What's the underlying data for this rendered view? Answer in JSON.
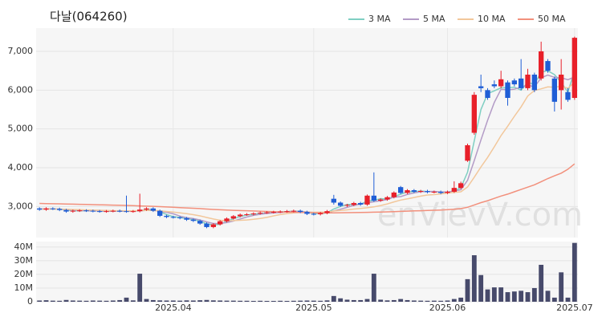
{
  "chart_data": {
    "type": "candlestick",
    "title": "다날(064260)",
    "watermark": "enVievV.com",
    "legend": "top-right",
    "grid": true,
    "up_color": "#e8202a",
    "down_color": "#1f5ed6",
    "categories": [
      null,
      null,
      null,
      null,
      null,
      null,
      null,
      null,
      null,
      null,
      null,
      null,
      null,
      null,
      null,
      null,
      null,
      null,
      null,
      null,
      "2025.04",
      null,
      null,
      null,
      null,
      null,
      null,
      null,
      null,
      null,
      null,
      null,
      null,
      null,
      null,
      null,
      null,
      null,
      null,
      null,
      null,
      "2025.05",
      null,
      null,
      null,
      null,
      null,
      null,
      null,
      null,
      null,
      null,
      null,
      null,
      null,
      null,
      null,
      null,
      null,
      null,
      null,
      "2025.06",
      null,
      null,
      null,
      null,
      null,
      null,
      null,
      null,
      null,
      null,
      null,
      null,
      null,
      null,
      null,
      null,
      null,
      null,
      "2025.07"
    ],
    "open": [
      2950,
      2920,
      2950,
      2940,
      2910,
      2870,
      2890,
      2900,
      2890,
      2880,
      2870,
      2880,
      2890,
      2880,
      2870,
      2880,
      2920,
      2950,
      2890,
      2760,
      2730,
      2720,
      2700,
      2660,
      2630,
      2560,
      2470,
      2540,
      2620,
      2690,
      2750,
      2790,
      2800,
      2820,
      2840,
      2850,
      2860,
      2870,
      2880,
      2890,
      2860,
      2810,
      2800,
      2830,
      3200,
      3100,
      3020,
      3040,
      3090,
      3050,
      3280,
      3150,
      3180,
      3240,
      3500,
      3350,
      3420,
      3380,
      3400,
      3370,
      3380,
      3350,
      3380,
      3480,
      4180,
      4900,
      6100,
      6000,
      6150,
      6100,
      6200,
      6250,
      6300,
      6050,
      6400,
      6300,
      6750,
      6300,
      6000,
      5950,
      5800
    ],
    "high": [
      2980,
      2980,
      2980,
      2970,
      2940,
      2920,
      2930,
      2930,
      2920,
      2910,
      2910,
      2920,
      2920,
      3280,
      2910,
      3330,
      2980,
      2980,
      2920,
      2790,
      2760,
      2750,
      2730,
      2690,
      2660,
      2590,
      2570,
      2650,
      2720,
      2780,
      2820,
      2830,
      2850,
      2870,
      2880,
      2890,
      2900,
      2910,
      2920,
      2920,
      2890,
      2840,
      2860,
      2910,
      3300,
      3130,
      3070,
      3120,
      3120,
      3310,
      3880,
      3210,
      3270,
      3390,
      3530,
      3450,
      3450,
      3430,
      3430,
      3410,
      3410,
      3410,
      3650,
      3640,
      4620,
      5950,
      6400,
      6050,
      6250,
      6500,
      6250,
      6300,
      6800,
      6550,
      6450,
      7250,
      6800,
      6350,
      6800,
      6050,
      7380
    ],
    "low": [
      2890,
      2890,
      2910,
      2880,
      2840,
      2840,
      2860,
      2860,
      2850,
      2840,
      2840,
      2850,
      2850,
      2840,
      2840,
      2850,
      2890,
      2860,
      2730,
      2700,
      2690,
      2670,
      2630,
      2600,
      2530,
      2440,
      2440,
      2510,
      2590,
      2660,
      2720,
      2760,
      2770,
      2790,
      2810,
      2820,
      2830,
      2840,
      2850,
      2830,
      2780,
      2770,
      2770,
      2800,
      3050,
      2990,
      2990,
      3010,
      3020,
      3020,
      3120,
      3120,
      3150,
      3210,
      3320,
      3320,
      3350,
      3350,
      3340,
      3340,
      3320,
      3320,
      3350,
      3450,
      4150,
      4850,
      5950,
      5750,
      6050,
      6050,
      5600,
      6100,
      6000,
      6000,
      5950,
      6250,
      6450,
      5450,
      5500,
      5700,
      5750
    ],
    "close": [
      2920,
      2950,
      2940,
      2910,
      2870,
      2890,
      2900,
      2890,
      2880,
      2870,
      2880,
      2890,
      2880,
      2870,
      2880,
      2920,
      2950,
      2890,
      2760,
      2730,
      2720,
      2700,
      2660,
      2630,
      2560,
      2470,
      2540,
      2620,
      2690,
      2750,
      2790,
      2800,
      2820,
      2840,
      2850,
      2860,
      2870,
      2880,
      2890,
      2860,
      2810,
      2800,
      2830,
      2880,
      3100,
      3020,
      3040,
      3090,
      3050,
      3280,
      3150,
      3180,
      3240,
      3360,
      3350,
      3420,
      3380,
      3400,
      3370,
      3380,
      3350,
      3380,
      3480,
      3600,
      4580,
      5880,
      6050,
      5800,
      6100,
      6280,
      5800,
      6150,
      6050,
      6400,
      6000,
      7000,
      6500,
      5700,
      6400,
      5750,
      7350
    ],
    "ylim": [
      2200,
      7600
    ],
    "yticks": [
      {
        "value": 3000,
        "label": "3,000"
      },
      {
        "value": 4000,
        "label": "4,000"
      },
      {
        "value": 5000,
        "label": "5,000"
      },
      {
        "value": 6000,
        "label": "6,000"
      },
      {
        "value": 7000,
        "label": "7,000"
      }
    ],
    "series": [
      {
        "name": "3 MA",
        "color": "#7fcfc2",
        "values": [
          2930,
          2940,
          2937,
          2933,
          2907,
          2890,
          2887,
          2893,
          2890,
          2880,
          2877,
          2880,
          2883,
          2880,
          2877,
          2890,
          2917,
          2920,
          2867,
          2793,
          2737,
          2717,
          2693,
          2663,
          2617,
          2553,
          2523,
          2543,
          2617,
          2687,
          2743,
          2780,
          2803,
          2820,
          2837,
          2850,
          2860,
          2870,
          2880,
          2877,
          2853,
          2823,
          2813,
          2837,
          2937,
          3000,
          3053,
          3050,
          3060,
          3140,
          3160,
          3203,
          3190,
          3260,
          3317,
          3377,
          3383,
          3400,
          3383,
          3383,
          3367,
          3370,
          3403,
          3487,
          3887,
          4687,
          5503,
          5910,
          5983,
          6060,
          6060,
          6077,
          6000,
          6200,
          6150,
          6467,
          6500,
          6400,
          6200,
          5950,
          6500
        ]
      },
      {
        "name": "5 MA",
        "color": "#b39bc6",
        "values": [
          2940,
          2940,
          2938,
          2932,
          2918,
          2912,
          2902,
          2892,
          2886,
          2886,
          2884,
          2882,
          2880,
          2878,
          2880,
          2888,
          2902,
          2902,
          2878,
          2850,
          2812,
          2752,
          2714,
          2688,
          2654,
          2604,
          2562,
          2564,
          2584,
          2626,
          2678,
          2730,
          2770,
          2800,
          2820,
          2834,
          2848,
          2860,
          2870,
          2872,
          2862,
          2844,
          2834,
          2840,
          2884,
          2930,
          2978,
          3030,
          3060,
          3096,
          3122,
          3150,
          3180,
          3242,
          3256,
          3310,
          3350,
          3382,
          3384,
          3390,
          3376,
          3376,
          3394,
          3434,
          3676,
          4180,
          4718,
          5222,
          5682,
          6022,
          6006,
          6026,
          6076,
          6136,
          6080,
          6320,
          6390,
          6330,
          6320,
          6270,
          6340
        ]
      },
      {
        "name": "10 MA",
        "color": "#f2c79b",
        "values": [
          2935,
          2935,
          2934,
          2932,
          2928,
          2922,
          2918,
          2912,
          2907,
          2903,
          2899,
          2893,
          2890,
          2888,
          2889,
          2893,
          2899,
          2899,
          2887,
          2872,
          2856,
          2837,
          2815,
          2790,
          2758,
          2718,
          2677,
          2645,
          2635,
          2637,
          2644,
          2654,
          2670,
          2691,
          2720,
          2759,
          2792,
          2818,
          2838,
          2850,
          2852,
          2852,
          2853,
          2857,
          2882,
          2897,
          2914,
          2934,
          2950,
          2968,
          2990,
          3025,
          3066,
          3119,
          3166,
          3198,
          3232,
          3268,
          3296,
          3306,
          3326,
          3349,
          3362,
          3380,
          3503,
          3754,
          4021,
          4265,
          4537,
          4827,
          5069,
          5324,
          5569,
          5849,
          5991,
          6033,
          6083,
          6073,
          6103,
          6048,
          6203
        ]
      },
      {
        "name": "50 MA",
        "color": "#f2907c",
        "values": [
          3080,
          3076,
          3072,
          3068,
          3064,
          3060,
          3056,
          3052,
          3048,
          3044,
          3040,
          3036,
          3032,
          3028,
          3022,
          3016,
          3010,
          3004,
          2996,
          2988,
          2980,
          2972,
          2964,
          2956,
          2946,
          2934,
          2924,
          2916,
          2908,
          2902,
          2896,
          2890,
          2884,
          2878,
          2872,
          2866,
          2860,
          2856,
          2852,
          2848,
          2844,
          2840,
          2838,
          2836,
          2838,
          2840,
          2842,
          2844,
          2846,
          2850,
          2854,
          2858,
          2862,
          2868,
          2874,
          2880,
          2886,
          2892,
          2898,
          2904,
          2910,
          2918,
          2930,
          2946,
          2980,
          3040,
          3100,
          3150,
          3210,
          3270,
          3320,
          3380,
          3440,
          3500,
          3560,
          3640,
          3720,
          3790,
          3860,
          3960,
          4100
        ]
      }
    ],
    "volume": {
      "color": "#474a6b",
      "ylim": [
        0,
        44000000
      ],
      "yticks": [
        0,
        {
          "value": 10000000,
          "label": "10M"
        },
        {
          "value": 20000000,
          "label": "20M"
        },
        {
          "value": 30000000,
          "label": "30M"
        },
        {
          "value": 40000000,
          "label": "40M"
        }
      ],
      "values": [
        900000,
        1100000,
        800000,
        700000,
        1300000,
        900000,
        800000,
        700000,
        900000,
        800000,
        700000,
        900000,
        1200000,
        3000000,
        1000000,
        20500000,
        2000000,
        1200000,
        1000000,
        900000,
        900000,
        800000,
        1000000,
        900000,
        1100000,
        1300000,
        1000000,
        900000,
        800000,
        800000,
        700000,
        700000,
        600000,
        700000,
        600000,
        600000,
        700000,
        600000,
        700000,
        800000,
        900000,
        800000,
        700000,
        1000000,
        4200000,
        2500000,
        1500000,
        1200000,
        1200000,
        2000000,
        20500000,
        1500000,
        1000000,
        1200000,
        2000000,
        1200000,
        900000,
        800000,
        700000,
        800000,
        700000,
        900000,
        2000000,
        3000000,
        16500000,
        34000000,
        19500000,
        9000000,
        10500000,
        10500000,
        7000000,
        7500000,
        8000000,
        7000000,
        10000000,
        27000000,
        8000000,
        3000000,
        21500000,
        3000000,
        43000000
      ]
    }
  }
}
